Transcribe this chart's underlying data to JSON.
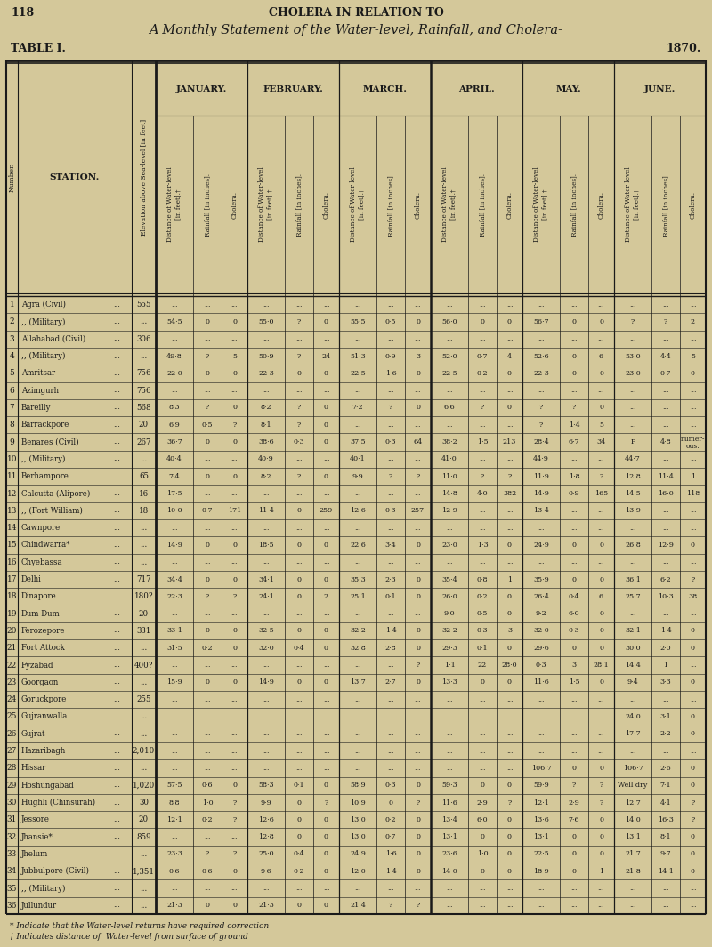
{
  "page_num": "118",
  "title1": "CHOLERA IN RELATION TO",
  "title2": "A Monthly Statement of the Water-level, Rainfall, and Cholera-",
  "table_label": "TABLE I.",
  "year": "1870.",
  "bg_color": "#d4c89a",
  "text_color": "#1a1a1a",
  "months": [
    "January.",
    "February.",
    "March.",
    "April.",
    "May.",
    "June."
  ],
  "footnote1": "* Indicate that the Water-level returns have required correction",
  "footnote2": "† Indicates distance of  Water-level from surface of ground",
  "col_headers_rotated": [
    "Distance of Water-level\n[in feet].†",
    "Rainfall [in inches].",
    "Cholera."
  ],
  "rows": [
    [
      1,
      "Agra (Civil)",
      "...",
      "555",
      "...",
      "...",
      "...",
      "...",
      "...",
      "...",
      "...",
      "...",
      "...",
      "...",
      "...",
      "...",
      "...",
      "...",
      "...",
      "...",
      "...",
      "..."
    ],
    [
      2,
      ",, (Military)",
      "...",
      "...",
      "54·5",
      "0",
      "0",
      "55·0",
      "?",
      "0",
      "55·5",
      "0·5",
      "0",
      "56·0",
      "0",
      "0",
      "56·7",
      "0",
      "0",
      "?",
      "?",
      "2"
    ],
    [
      3,
      "Allahabad (Civil)",
      "...",
      "306",
      "...",
      "...",
      "...",
      "...",
      "...",
      "...",
      "...",
      "...",
      "...",
      "...",
      "...",
      "...",
      "...",
      "...",
      "...",
      "...",
      "...",
      "..."
    ],
    [
      4,
      ",, (Military)",
      "...",
      "...",
      "49·8",
      "?",
      "5",
      "50·9",
      "?",
      "24",
      "51·3",
      "0·9",
      "3",
      "52·0",
      "0·7",
      "4",
      "52·6",
      "0",
      "6",
      "53·0",
      "4·4",
      "5"
    ],
    [
      5,
      "Amritsar",
      "...",
      "756",
      "22·0",
      "0",
      "0",
      "22·3",
      "0",
      "0",
      "22·5",
      "1·6",
      "0",
      "22·5",
      "0·2",
      "0",
      "22·3",
      "0",
      "0",
      "23·0",
      "0·7",
      "0"
    ],
    [
      6,
      "Azimgurh",
      "...",
      "756",
      "...",
      "...",
      "...",
      "...",
      "...",
      "...",
      "...",
      "...",
      "...",
      "...",
      "...",
      "...",
      "...",
      "...",
      "...",
      "...",
      "...",
      "..."
    ],
    [
      7,
      "Bareilly",
      "...",
      "568",
      "8·3",
      "?",
      "0",
      "8·2",
      "?",
      "0",
      "7·2",
      "?",
      "0",
      "6·6",
      "?",
      "0",
      "?",
      "?",
      "0",
      "...",
      "...",
      "..."
    ],
    [
      8,
      "Barrackpore",
      "...",
      "20",
      "6·9",
      "0·5",
      "?",
      "8·1",
      "?",
      "0",
      "...",
      "...",
      "...",
      "...",
      "...",
      "...",
      "?",
      "1·4",
      "5",
      "...",
      "...",
      "..."
    ],
    [
      9,
      "Benares (Civil)",
      "...",
      "267",
      "36·7",
      "0",
      "0",
      "38·6",
      "0·3",
      "0",
      "37·5",
      "0·3",
      "64",
      "38·2",
      "1·5",
      "213",
      "28·4",
      "6·7",
      "34",
      "P",
      "4·8",
      "numer-ous."
    ],
    [
      10,
      ",, (Military)",
      "...",
      "...",
      "40·4",
      "...",
      "...",
      "40·9",
      "...",
      "...",
      "40·1",
      "...",
      "...",
      "41·0",
      "...",
      "...",
      "44·9",
      "...",
      "...",
      "44·7",
      "...",
      "..."
    ],
    [
      11,
      "Berhampore",
      "...",
      "65",
      "7·4",
      "0",
      "0",
      "8·2",
      "?",
      "0",
      "9·9",
      "?",
      "?",
      "11·0",
      "?",
      "?",
      "11·9",
      "1·8",
      "?",
      "12·8",
      "11·4",
      "1"
    ],
    [
      12,
      "Calcutta (Alipore)",
      "...",
      "16",
      "17·5",
      "...",
      "...",
      "...",
      "...",
      "...",
      "...",
      "...",
      "...",
      "14·8",
      "4·0",
      "382",
      "14·9",
      "0·9",
      "165",
      "14·5",
      "16·0",
      "118"
    ],
    [
      13,
      ",, (Fort William)",
      "...",
      "18",
      "10·0",
      "0·7",
      "171",
      "11·4",
      "0",
      "259",
      "12·6",
      "0·3",
      "257",
      "12·9",
      "...",
      "...",
      "13·4",
      "...",
      "...",
      "13·9",
      "...",
      "..."
    ],
    [
      14,
      "Cawnpore",
      "...",
      "...",
      "...",
      "...",
      "...",
      "...",
      "...",
      "...",
      "...",
      "...",
      "...",
      "...",
      "...",
      "...",
      "...",
      "...",
      "...",
      "...",
      "...",
      "..."
    ],
    [
      15,
      "Chindwarra*",
      "...",
      "...",
      "14·9",
      "0",
      "0",
      "18·5",
      "0",
      "0",
      "22·6",
      "3·4",
      "0",
      "23·0",
      "1·3",
      "0",
      "24·9",
      "0",
      "0",
      "26·8",
      "12·9",
      "0"
    ],
    [
      16,
      "Chyebassa",
      "...",
      "...",
      "...",
      "...",
      "...",
      "...",
      "...",
      "...",
      "...",
      "...",
      "...",
      "...",
      "...",
      "...",
      "...",
      "...",
      "...",
      "...",
      "...",
      "..."
    ],
    [
      17,
      "Delhi",
      "...",
      "717",
      "34·4",
      "0",
      "0",
      "34·1",
      "0",
      "0",
      "35·3",
      "2·3",
      "0",
      "35·4",
      "0·8",
      "1",
      "35·9",
      "0",
      "0",
      "36·1",
      "6·2",
      "?"
    ],
    [
      18,
      "Dinapore",
      "...",
      "180?",
      "22·3",
      "?",
      "?",
      "24·1",
      "0",
      "2",
      "25·1",
      "0·1",
      "0",
      "26·0",
      "0·2",
      "0",
      "26·4",
      "0·4",
      "6",
      "25·7",
      "10·3",
      "38"
    ],
    [
      19,
      "Dum-Dum",
      "...",
      "20",
      "...",
      "...",
      "...",
      "...",
      "...",
      "...",
      "...",
      "...",
      "...",
      "9·0",
      "0·5",
      "0",
      "9·2",
      "6·0",
      "0",
      "...",
      "...",
      "..."
    ],
    [
      20,
      "Ferozepore",
      "...",
      "331",
      "33·1",
      "0",
      "0",
      "32·5",
      "0",
      "0",
      "32·2",
      "1·4",
      "0",
      "32·2",
      "0·3",
      "3",
      "32·0",
      "0·3",
      "0",
      "32·1",
      "1·4",
      "0"
    ],
    [
      21,
      "Fort Attock",
      "...",
      "...",
      "31·5",
      "0·2",
      "0",
      "32·0",
      "0·4",
      "0",
      "32·8",
      "2·8",
      "0",
      "29·3",
      "0·1",
      "0",
      "29·6",
      "0",
      "0",
      "30·0",
      "2·0",
      "0"
    ],
    [
      22,
      "Fyzabad",
      "...",
      "400?",
      "...",
      "...",
      "...",
      "...",
      "...",
      "...",
      "...",
      "...",
      "?",
      "1·1",
      "22",
      "28·0",
      "0·3",
      "3",
      "28·1",
      "14·4",
      "1"
    ],
    [
      23,
      "Goorgaon",
      "...",
      "...",
      "15·9",
      "0",
      "0",
      "14·9",
      "0",
      "0",
      "13·7",
      "2·7",
      "0",
      "13·3",
      "0",
      "0",
      "11·6",
      "1·5",
      "0",
      "9·4",
      "3·3",
      "0"
    ],
    [
      24,
      "Goruckpore",
      "...",
      "255",
      "...",
      "...",
      "...",
      "...",
      "...",
      "...",
      "...",
      "...",
      "...",
      "...",
      "...",
      "...",
      "...",
      "...",
      "...",
      "...",
      "...",
      "..."
    ],
    [
      25,
      "Gujranwalla",
      "...",
      "...",
      "...",
      "...",
      "...",
      "...",
      "...",
      "...",
      "...",
      "...",
      "...",
      "...",
      "...",
      "...",
      "...",
      "...",
      "...",
      "24·0",
      "3·1",
      "0"
    ],
    [
      26,
      "Gujrat",
      "...",
      "...",
      "...",
      "...",
      "...",
      "...",
      "...",
      "...",
      "...",
      "...",
      "...",
      "...",
      "...",
      "...",
      "...",
      "...",
      "...",
      "17·7",
      "2·2",
      "0"
    ],
    [
      27,
      "Hazaribagh",
      "...",
      "2,010",
      "...",
      "...",
      "...",
      "...",
      "...",
      "...",
      "...",
      "...",
      "...",
      "...",
      "...",
      "...",
      "...",
      "...",
      "...",
      "...",
      "...",
      "..."
    ],
    [
      28,
      "Hissar",
      "...",
      "...",
      "...",
      "...",
      "...",
      "...",
      "...",
      "...",
      "...",
      "...",
      "...",
      "...",
      "...",
      "...",
      "106·7",
      "0",
      "0",
      "106·7",
      "2·6",
      "0"
    ],
    [
      29,
      "Hoshungabad",
      "...",
      "1,020",
      "57·5",
      "0·6",
      "0",
      "58·3",
      "0·1",
      "0",
      "58·9",
      "0·3",
      "0",
      "59·3",
      "0",
      "0",
      "59·9",
      "?",
      "?",
      "Well dry",
      "7·1",
      "0"
    ],
    [
      30,
      "Hughli (Chinsurah)",
      "...",
      "30",
      "8·8",
      "1·0",
      "?",
      "9·9",
      "0",
      "?",
      "10·9",
      "0",
      "?",
      "11·6",
      "2·9",
      "?",
      "12·1",
      "2·9",
      "?",
      "12·7",
      "4·1",
      "?"
    ],
    [
      31,
      "Jessore",
      "...",
      "20",
      "12·1",
      "0·2",
      "?",
      "12·6",
      "0",
      "0",
      "13·0",
      "0·2",
      "0",
      "13·4",
      "6·0",
      "0",
      "13·6",
      "7·6",
      "0",
      "14·0",
      "16·3",
      "?"
    ],
    [
      32,
      "Jhansie*",
      "...",
      "859",
      "...",
      "...",
      "...",
      "12·8",
      "0",
      "0",
      "13·0",
      "0·7",
      "0",
      "13·1",
      "0",
      "0",
      "13·1",
      "0",
      "0",
      "13·1",
      "8·1",
      "0"
    ],
    [
      33,
      "Jhelum",
      "...",
      "...",
      "23·3",
      "?",
      "?",
      "25·0",
      "0·4",
      "0",
      "24·9",
      "1·6",
      "0",
      "23·6",
      "1·0",
      "0",
      "22·5",
      "0",
      "0",
      "21·7",
      "9·7",
      "0"
    ],
    [
      34,
      "Jubbulpore (Civil)",
      "...",
      "1,351",
      "0·6",
      "0·6",
      "0",
      "9·6",
      "0·2",
      "0",
      "12·0",
      "1·4",
      "0",
      "14·0",
      "0",
      "0",
      "18·9",
      "0",
      "1",
      "21·8",
      "14·1",
      "0"
    ],
    [
      35,
      ",, (Military)",
      "...",
      "...",
      "...",
      "...",
      "...",
      "...",
      "...",
      "...",
      "...",
      "...",
      "...",
      "...",
      "...",
      "...",
      "...",
      "...",
      "...",
      "...",
      "...",
      "..."
    ],
    [
      36,
      "Jullundur",
      "...",
      "...",
      "21·3",
      "0",
      "0",
      "21·3",
      "0",
      "0",
      "21·4",
      "?",
      "?",
      "...",
      "...",
      "...",
      "...",
      "...",
      "...",
      "...",
      "...",
      "..."
    ]
  ]
}
